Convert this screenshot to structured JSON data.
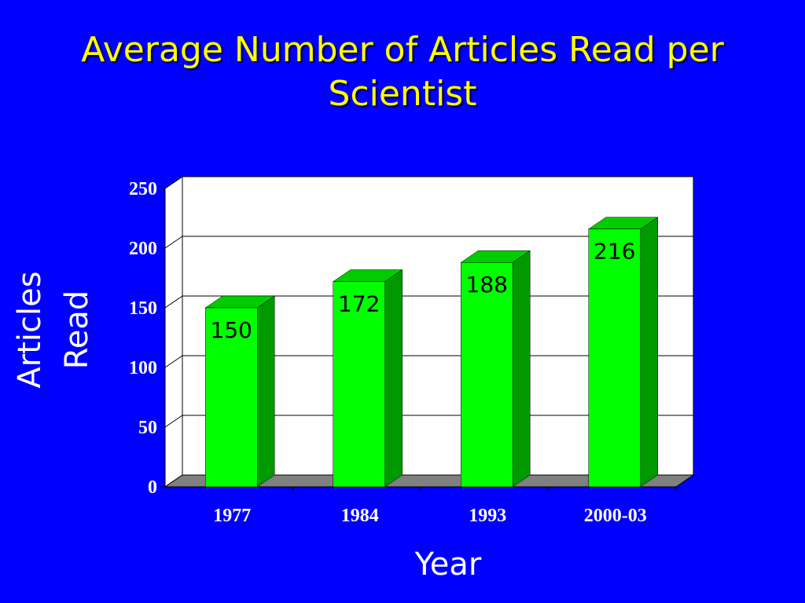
{
  "slide": {
    "title_line1": "Average Number of Articles Read per",
    "title_line2": "Scientist"
  },
  "colors": {
    "background": "#0000ff",
    "title": "#ffff00",
    "axis_text": "#ffffff",
    "bar_front": "#00ff00",
    "bar_side": "#009900",
    "bar_top": "#00cc00",
    "plot_background": "#ffffff",
    "floor": "#808080"
  },
  "chart_data": {
    "type": "bar",
    "title": "Average Number of Articles Read per Scientist",
    "xlabel": "Year",
    "ylabel": "Articles Read",
    "categories": [
      "1977",
      "1984",
      "1993",
      "2000-03"
    ],
    "values": [
      150,
      172,
      188,
      216
    ],
    "data_labels": [
      "150",
      "172",
      "188",
      "216"
    ],
    "ylim": [
      0,
      250
    ],
    "yticks": [
      0,
      50,
      100,
      150,
      200,
      250
    ],
    "grid": true,
    "style": "3d-column",
    "legend": "none"
  }
}
